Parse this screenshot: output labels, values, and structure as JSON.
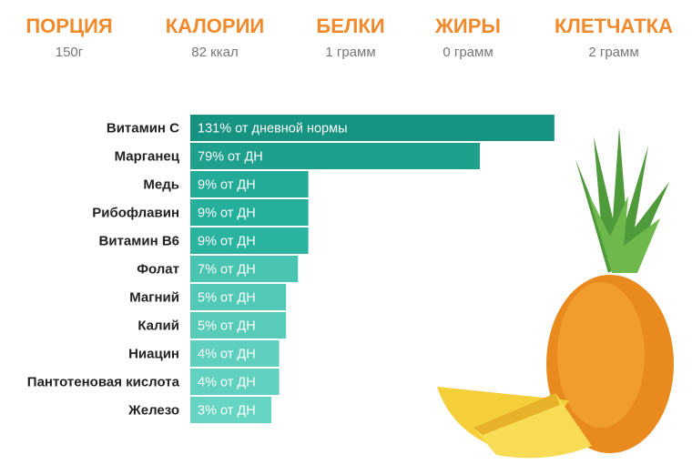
{
  "header": {
    "items": [
      {
        "title": "ПОРЦИЯ",
        "value": "150г"
      },
      {
        "title": "КАЛОРИИ",
        "value": "82 ккал"
      },
      {
        "title": "БЕЛКИ",
        "value": "1 грамм"
      },
      {
        "title": "ЖИРЫ",
        "value": "0 грамм"
      },
      {
        "title": "КЛЕТЧАТКА",
        "value": "2 грамм"
      }
    ]
  },
  "chart_data": {
    "type": "hbar",
    "x_scale": "sqrt",
    "categories": [
      "Витамин C",
      "Марганец",
      "Медь",
      "Рибофлавин",
      "Витамин B6",
      "Фолат",
      "Магний",
      "Калий",
      "Ниацин",
      "Пантотеновая кислота",
      "Железо"
    ],
    "values": [
      131,
      79,
      9,
      9,
      9,
      7,
      5,
      5,
      4,
      4,
      3
    ],
    "value_labels": [
      "131% от дневной нормы",
      "79% от ДН",
      "9% от ДН",
      "9% от ДН",
      "9% от ДН",
      "7% от ДН",
      "5% от ДН",
      "5% от ДН",
      "4% от ДН",
      "4% от ДН",
      "3% от ДН"
    ],
    "colors": [
      "#179382",
      "#1ea08d",
      "#23ab97",
      "#26b09c",
      "#2ab4a0",
      "#48c4b0",
      "#52c9b6",
      "#58ccb9",
      "#5ed0bd",
      "#62d2c0",
      "#66d4c2"
    ]
  }
}
